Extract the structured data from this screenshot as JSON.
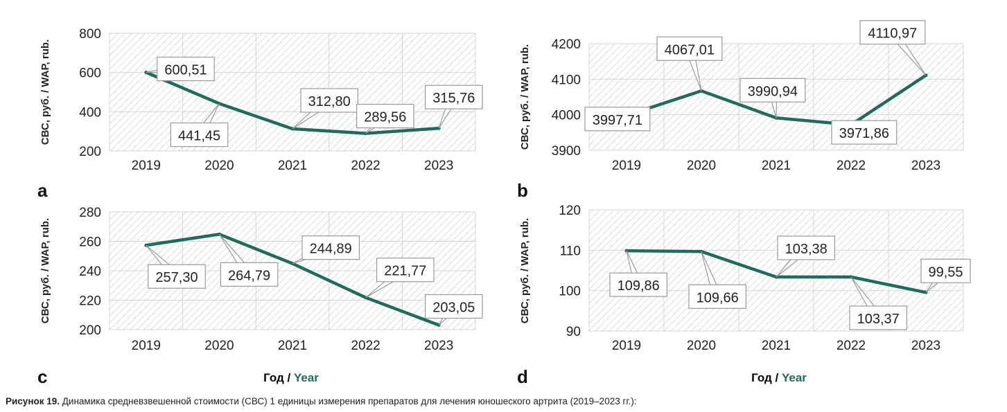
{
  "caption": {
    "label": "Рисунок 19.",
    "text": "Динамика средневзвешенной стоимости (СВС) 1 единицы измерения препаратов для лечения юношеского артрита (2019–2023 гг.):"
  },
  "x_axis_title": {
    "ru": "Год / ",
    "en": "Year"
  },
  "colors": {
    "line": "#1f6b5c",
    "year_accent": "#1f6b5c",
    "grid": "#d4d4d4",
    "hatch": "#dedede",
    "label_border": "#9a9a9a"
  },
  "chart_data": [
    {
      "panel": "a",
      "type": "line",
      "x": [
        "2019",
        "2020",
        "2021",
        "2022",
        "2023"
      ],
      "values": [
        600.51,
        441.45,
        312.8,
        289.56,
        315.76
      ],
      "value_labels": [
        "600,51",
        "441,45",
        "312,80",
        "289,56",
        "315,76"
      ],
      "ylabel": "СВС, руб. / WAP, rub.",
      "ylim": [
        200,
        800
      ],
      "yticks": [
        200,
        400,
        600,
        800
      ],
      "grid": true,
      "hatched_background": true
    },
    {
      "panel": "b",
      "type": "line",
      "x": [
        "2019",
        "2020",
        "2021",
        "2022",
        "2023"
      ],
      "values": [
        3997.71,
        4067.01,
        3990.94,
        3971.86,
        4110.97
      ],
      "value_labels": [
        "3997,71",
        "4067,01",
        "3990,94",
        "3971,86",
        "4110,97"
      ],
      "ylabel": "СВС, руб. / WAP, rub.",
      "ylim": [
        3900,
        4200
      ],
      "yticks": [
        3900,
        4000,
        4100,
        4200
      ],
      "grid": true,
      "hatched_background": true
    },
    {
      "panel": "c",
      "type": "line",
      "x": [
        "2019",
        "2020",
        "2021",
        "2022",
        "2023"
      ],
      "values": [
        257.3,
        264.79,
        244.89,
        221.77,
        203.05
      ],
      "value_labels": [
        "257,30",
        "264,79",
        "244,89",
        "221,77",
        "203,05"
      ],
      "ylabel": "СВС, руб. / WAP, rub.",
      "ylim": [
        200,
        280
      ],
      "yticks": [
        200,
        220,
        240,
        260,
        280
      ],
      "grid": true,
      "hatched_background": true
    },
    {
      "panel": "d",
      "type": "line",
      "x": [
        "2019",
        "2020",
        "2021",
        "2022",
        "2023"
      ],
      "values": [
        109.86,
        109.66,
        103.38,
        103.37,
        99.55
      ],
      "value_labels": [
        "109,86",
        "109,66",
        "103,38",
        "103,37",
        "99,55"
      ],
      "ylabel": "СВС, руб. / WAP, rub.",
      "ylim": [
        90,
        120
      ],
      "yticks": [
        90,
        100,
        110,
        120
      ],
      "grid": true,
      "hatched_background": true
    }
  ]
}
